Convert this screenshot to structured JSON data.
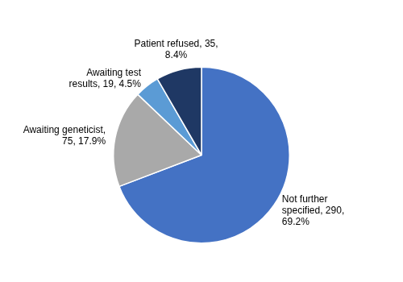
{
  "chart_data": {
    "type": "pie",
    "categories": [
      "Not further\nspecified, 290,\n69.2%",
      "Awaiting geneticist,\n75, 17.9%",
      "Awaiting test\nresults, 19, 4.5%",
      "Patient refused, 35,\n8.4%"
    ],
    "values": [
      290,
      75,
      19,
      35
    ],
    "colors": [
      "#4472C4",
      "#A9A9A9",
      "#5B9BD5",
      "#1F3864"
    ]
  }
}
